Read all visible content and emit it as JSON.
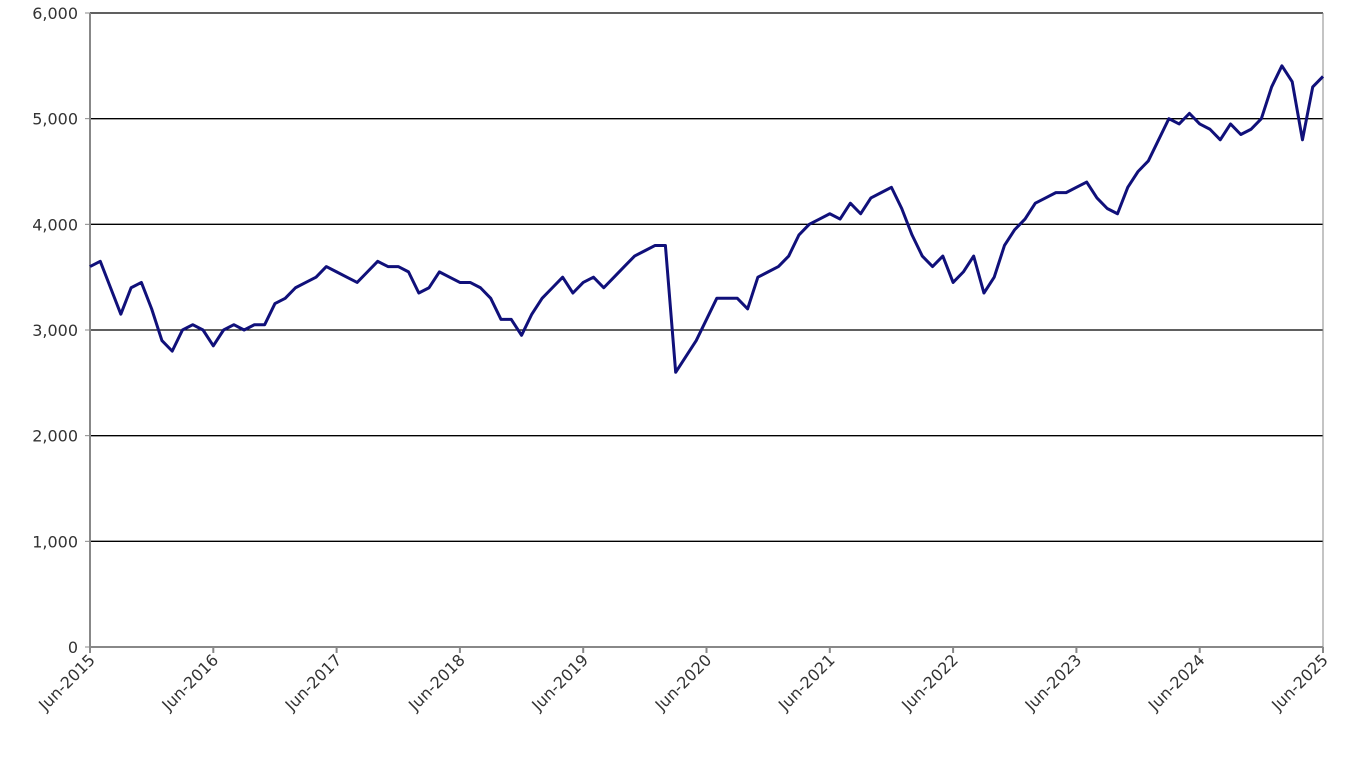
{
  "chart_data": {
    "type": "line",
    "x": [
      "Jun-2015",
      "Jul-2015",
      "Aug-2015",
      "Sep-2015",
      "Oct-2015",
      "Nov-2015",
      "Dec-2015",
      "Jan-2016",
      "Feb-2016",
      "Mar-2016",
      "Apr-2016",
      "May-2016",
      "Jun-2016",
      "Jul-2016",
      "Aug-2016",
      "Sep-2016",
      "Oct-2016",
      "Nov-2016",
      "Dec-2016",
      "Jan-2017",
      "Feb-2017",
      "Mar-2017",
      "Apr-2017",
      "May-2017",
      "Jun-2017",
      "Jul-2017",
      "Aug-2017",
      "Sep-2017",
      "Oct-2017",
      "Nov-2017",
      "Dec-2017",
      "Jan-2018",
      "Feb-2018",
      "Mar-2018",
      "Apr-2018",
      "May-2018",
      "Jun-2018",
      "Jul-2018",
      "Aug-2018",
      "Sep-2018",
      "Oct-2018",
      "Nov-2018",
      "Dec-2018",
      "Jan-2019",
      "Feb-2019",
      "Mar-2019",
      "Apr-2019",
      "May-2019",
      "Jun-2019",
      "Jul-2019",
      "Aug-2019",
      "Sep-2019",
      "Oct-2019",
      "Nov-2019",
      "Dec-2019",
      "Jan-2020",
      "Feb-2020",
      "Mar-2020",
      "Apr-2020",
      "May-2020",
      "Jun-2020",
      "Jul-2020",
      "Aug-2020",
      "Sep-2020",
      "Oct-2020",
      "Nov-2020",
      "Dec-2020",
      "Jan-2021",
      "Feb-2021",
      "Mar-2021",
      "Apr-2021",
      "May-2021",
      "Jun-2021",
      "Jul-2021",
      "Aug-2021",
      "Sep-2021",
      "Oct-2021",
      "Nov-2021",
      "Dec-2021",
      "Jan-2022",
      "Feb-2022",
      "Mar-2022",
      "Apr-2022",
      "May-2022",
      "Jun-2022",
      "Jul-2022",
      "Aug-2022",
      "Sep-2022",
      "Oct-2022",
      "Nov-2022",
      "Dec-2022",
      "Jan-2023",
      "Feb-2023",
      "Mar-2023",
      "Apr-2023",
      "May-2023",
      "Jun-2023",
      "Jul-2023",
      "Aug-2023",
      "Sep-2023",
      "Oct-2023",
      "Nov-2023",
      "Dec-2023",
      "Jan-2024",
      "Feb-2024",
      "Mar-2024",
      "Apr-2024",
      "May-2024",
      "Jun-2024",
      "Jul-2024",
      "Aug-2024",
      "Sep-2024",
      "Oct-2024",
      "Nov-2024",
      "Dec-2024",
      "Jan-2025",
      "Feb-2025",
      "Mar-2025",
      "Apr-2025",
      "May-2025",
      "Jun-2025"
    ],
    "series": [
      {
        "color": "#10107a",
        "values": [
          3600,
          3650,
          3400,
          3150,
          3400,
          3450,
          3200,
          2900,
          2800,
          3000,
          3050,
          3000,
          2850,
          3000,
          3050,
          3000,
          3050,
          3050,
          3250,
          3300,
          3400,
          3450,
          3500,
          3600,
          3550,
          3500,
          3450,
          3550,
          3650,
          3600,
          3600,
          3550,
          3350,
          3400,
          3550,
          3500,
          3450,
          3450,
          3400,
          3300,
          3100,
          3100,
          2950,
          3150,
          3300,
          3400,
          3500,
          3350,
          3450,
          3500,
          3400,
          3500,
          3600,
          3700,
          3750,
          3800,
          3800,
          2600,
          2750,
          2900,
          3100,
          3300,
          3300,
          3300,
          3200,
          3500,
          3550,
          3600,
          3700,
          3900,
          4000,
          4050,
          4100,
          4050,
          4200,
          4100,
          4250,
          4300,
          4350,
          4150,
          3900,
          3700,
          3600,
          3700,
          3450,
          3550,
          3700,
          3350,
          3500,
          3800,
          3950,
          4050,
          4200,
          4250,
          4300,
          4300,
          4350,
          4400,
          4250,
          4150,
          4100,
          4350,
          4500,
          4600,
          4800,
          5000,
          4950,
          5050,
          4950,
          4900,
          4800,
          4950,
          4850,
          4900,
          5000,
          5300,
          5500,
          5350,
          4800,
          5300,
          5400
        ]
      }
    ],
    "xlim": [
      "Jun-2015",
      "Jun-2025"
    ],
    "xticks": [
      "Jun-2015",
      "Jun-2016",
      "Jun-2017",
      "Jun-2018",
      "Jun-2019",
      "Jun-2020",
      "Jun-2021",
      "Jun-2022",
      "Jun-2023",
      "Jun-2024",
      "Jun-2025"
    ],
    "ylim": [
      0,
      6000
    ],
    "yticks": [
      0,
      {
        "value": 1000,
        "label": "1,000"
      },
      {
        "value": 2000,
        "label": "2,000"
      },
      {
        "value": 3000,
        "label": "3,000"
      },
      {
        "value": 4000,
        "label": "4,000"
      },
      {
        "value": 5000,
        "label": "5,000"
      },
      {
        "value": 6000,
        "label": "6,000"
      }
    ],
    "grid": true
  }
}
